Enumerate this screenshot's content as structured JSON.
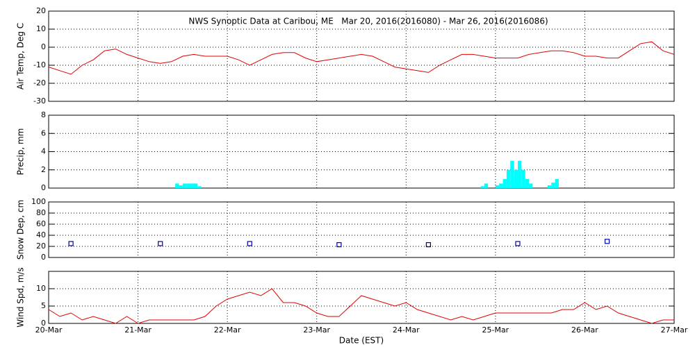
{
  "chart_data": [
    {
      "type": "line",
      "title": "NWS Synoptic Data at Caribou, ME   Mar 20, 2016(2016080) - Mar 26, 2016(2016086)",
      "ylabel": "Air Temp, Deg C",
      "x": [
        0,
        3,
        6,
        9,
        12,
        15,
        18,
        21,
        24,
        27,
        30,
        33,
        36,
        39,
        42,
        45,
        48,
        51,
        54,
        57,
        60,
        63,
        66,
        69,
        72,
        75,
        78,
        81,
        84,
        87,
        90,
        93,
        96,
        99,
        102,
        105,
        108,
        111,
        114,
        117,
        120,
        123,
        126,
        129,
        132,
        135,
        138,
        141,
        144,
        147,
        150,
        153,
        156,
        159,
        162,
        165,
        168
      ],
      "values": [
        -11,
        -13,
        -15,
        -10,
        -7,
        -2,
        -1,
        -4,
        -6,
        -8,
        -9,
        -8,
        -5,
        -4,
        -5,
        -5,
        -5,
        -7,
        -10,
        -7,
        -4,
        -3,
        -3,
        -6,
        -8,
        -7,
        -6,
        -5,
        -4,
        -5,
        -8,
        -11,
        -12,
        -13,
        -14,
        -10,
        -7,
        -4,
        -4,
        -5,
        -6,
        -6,
        -6,
        -4,
        -3,
        -2,
        -2,
        -3,
        -5,
        -5,
        -6,
        -6,
        -2,
        2,
        3,
        -2,
        -4
      ],
      "color": "#e00000",
      "xlim": [
        0,
        168
      ],
      "xticks": [
        0,
        24,
        48,
        72,
        96,
        120,
        144,
        168
      ],
      "ylim": [
        -30,
        20
      ],
      "yticks": [
        -30,
        -20,
        -10,
        0,
        10,
        20
      ],
      "grid": true
    },
    {
      "type": "bar",
      "ylabel": "Precip, mm",
      "x": [
        34,
        35,
        36,
        37,
        38,
        39,
        40,
        116,
        117,
        120,
        121,
        122,
        123,
        124,
        125,
        126,
        127,
        128,
        129,
        134,
        135,
        136
      ],
      "values": [
        0.5,
        0.3,
        0.5,
        0.5,
        0.5,
        0.5,
        0.2,
        0.2,
        0.5,
        0.3,
        0.5,
        1,
        2,
        3,
        2,
        3,
        2,
        1,
        0.5,
        0.3,
        0.6,
        1
      ],
      "color": "#00ffff",
      "xlim": [
        0,
        168
      ],
      "xticks": [
        0,
        24,
        48,
        72,
        96,
        120,
        144,
        168
      ],
      "ylim": [
        0,
        8
      ],
      "yticks": [
        0,
        2,
        4,
        6,
        8
      ],
      "grid": true
    },
    {
      "type": "scatter",
      "ylabel": "Snow Dep, cm",
      "x": [
        6,
        30,
        54,
        78,
        102,
        126,
        150
      ],
      "values": [
        25,
        25,
        25,
        23,
        23,
        25,
        29
      ],
      "color": "#0000aa",
      "xlim": [
        0,
        168
      ],
      "xticks": [
        0,
        24,
        48,
        72,
        96,
        120,
        144,
        168
      ],
      "ylim": [
        0,
        100
      ],
      "yticks": [
        0,
        20,
        40,
        60,
        80,
        100
      ],
      "grid": true
    },
    {
      "type": "line",
      "ylabel": "Wind Spd, m/s",
      "xlabel": "Date (EST)",
      "x": [
        0,
        3,
        6,
        9,
        12,
        15,
        18,
        21,
        24,
        27,
        30,
        33,
        36,
        39,
        42,
        45,
        48,
        51,
        54,
        57,
        60,
        63,
        66,
        69,
        72,
        75,
        78,
        81,
        84,
        87,
        90,
        93,
        96,
        99,
        102,
        105,
        108,
        111,
        114,
        117,
        120,
        123,
        126,
        129,
        132,
        135,
        138,
        141,
        144,
        147,
        150,
        153,
        156,
        159,
        162,
        165,
        168
      ],
      "values": [
        4,
        2,
        3,
        1,
        2,
        1,
        0,
        2,
        0,
        1,
        1,
        1,
        1,
        1,
        2,
        5,
        7,
        8,
        9,
        8,
        10,
        6,
        6,
        5,
        3,
        2,
        2,
        5,
        8,
        7,
        6,
        5,
        6,
        4,
        3,
        2,
        1,
        2,
        1,
        2,
        3,
        3,
        3,
        3,
        3,
        3,
        4,
        4,
        6,
        4,
        5,
        3,
        2,
        1,
        0,
        1,
        1
      ],
      "color": "#e00000",
      "xlim": [
        0,
        168
      ],
      "xticks": [
        {
          "value": 0,
          "label": "20-Mar"
        },
        {
          "value": 24,
          "label": "21-Mar"
        },
        {
          "value": 48,
          "label": "22-Mar"
        },
        {
          "value": 72,
          "label": "23-Mar"
        },
        {
          "value": 96,
          "label": "24-Mar"
        },
        {
          "value": 120,
          "label": "25-Mar"
        },
        {
          "value": 144,
          "label": "26-Mar"
        },
        {
          "value": 168,
          "label": "27-Mar"
        }
      ],
      "ylim": [
        0,
        15
      ],
      "yticks": [
        0,
        5,
        10
      ],
      "grid": true
    }
  ]
}
